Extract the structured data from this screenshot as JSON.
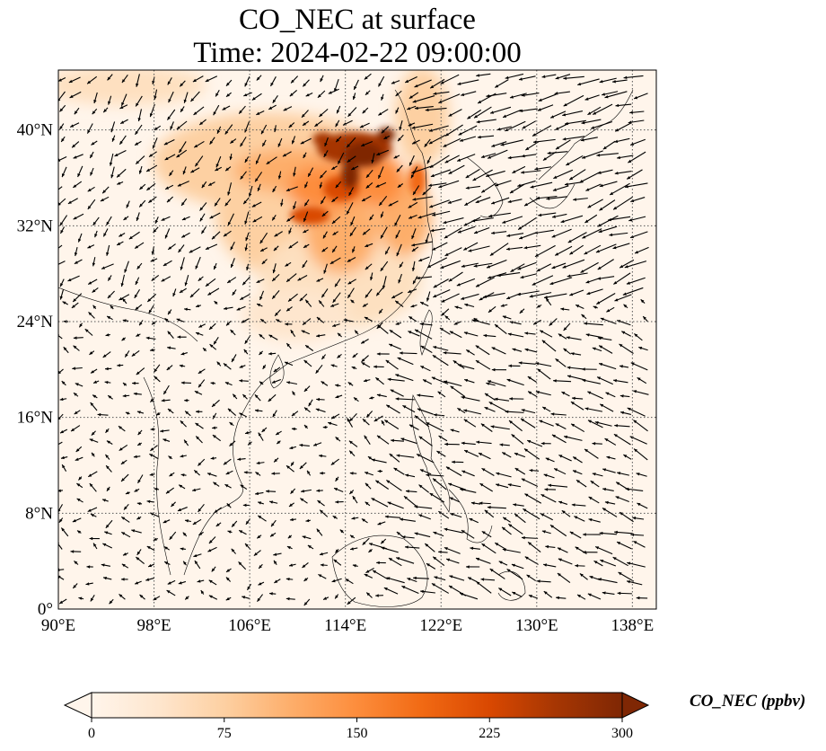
{
  "title": {
    "line1": "CO_NEC at surface",
    "line2": "Time: 2024-02-22 09:00:00"
  },
  "map": {
    "extent": {
      "lon": [
        90,
        140
      ],
      "lat": [
        0,
        45
      ]
    },
    "x_ticks": [
      {
        "value": 90,
        "label": "90°E"
      },
      {
        "value": 98,
        "label": "98°E"
      },
      {
        "value": 106,
        "label": "106°E"
      },
      {
        "value": 114,
        "label": "114°E"
      },
      {
        "value": 122,
        "label": "122°E"
      },
      {
        "value": 130,
        "label": "130°E"
      },
      {
        "value": 138,
        "label": "138°E"
      }
    ],
    "y_ticks": [
      {
        "value": 0,
        "label": "0°"
      },
      {
        "value": 8,
        "label": "8°N"
      },
      {
        "value": 16,
        "label": "16°N"
      },
      {
        "value": 24,
        "label": "24°N"
      },
      {
        "value": 32,
        "label": "32°N"
      },
      {
        "value": 40,
        "label": "40°N"
      }
    ],
    "gridlines": true,
    "field": "CO_NEC",
    "vectors": "wind"
  },
  "colorbar": {
    "label": "CO_NEC (ppbv)",
    "min": 0,
    "max": 300,
    "ticks": [
      {
        "value": 0,
        "label": "0"
      },
      {
        "value": 75,
        "label": "75"
      },
      {
        "value": 150,
        "label": "150"
      },
      {
        "value": 225,
        "label": "225"
      },
      {
        "value": 300,
        "label": "300"
      }
    ],
    "colormap": [
      "#fff5eb",
      "#fee6ce",
      "#fdd0a2",
      "#fdae6b",
      "#fd8d3c",
      "#f16913",
      "#d94801",
      "#a63603",
      "#7f2704"
    ],
    "extend": "both"
  }
}
